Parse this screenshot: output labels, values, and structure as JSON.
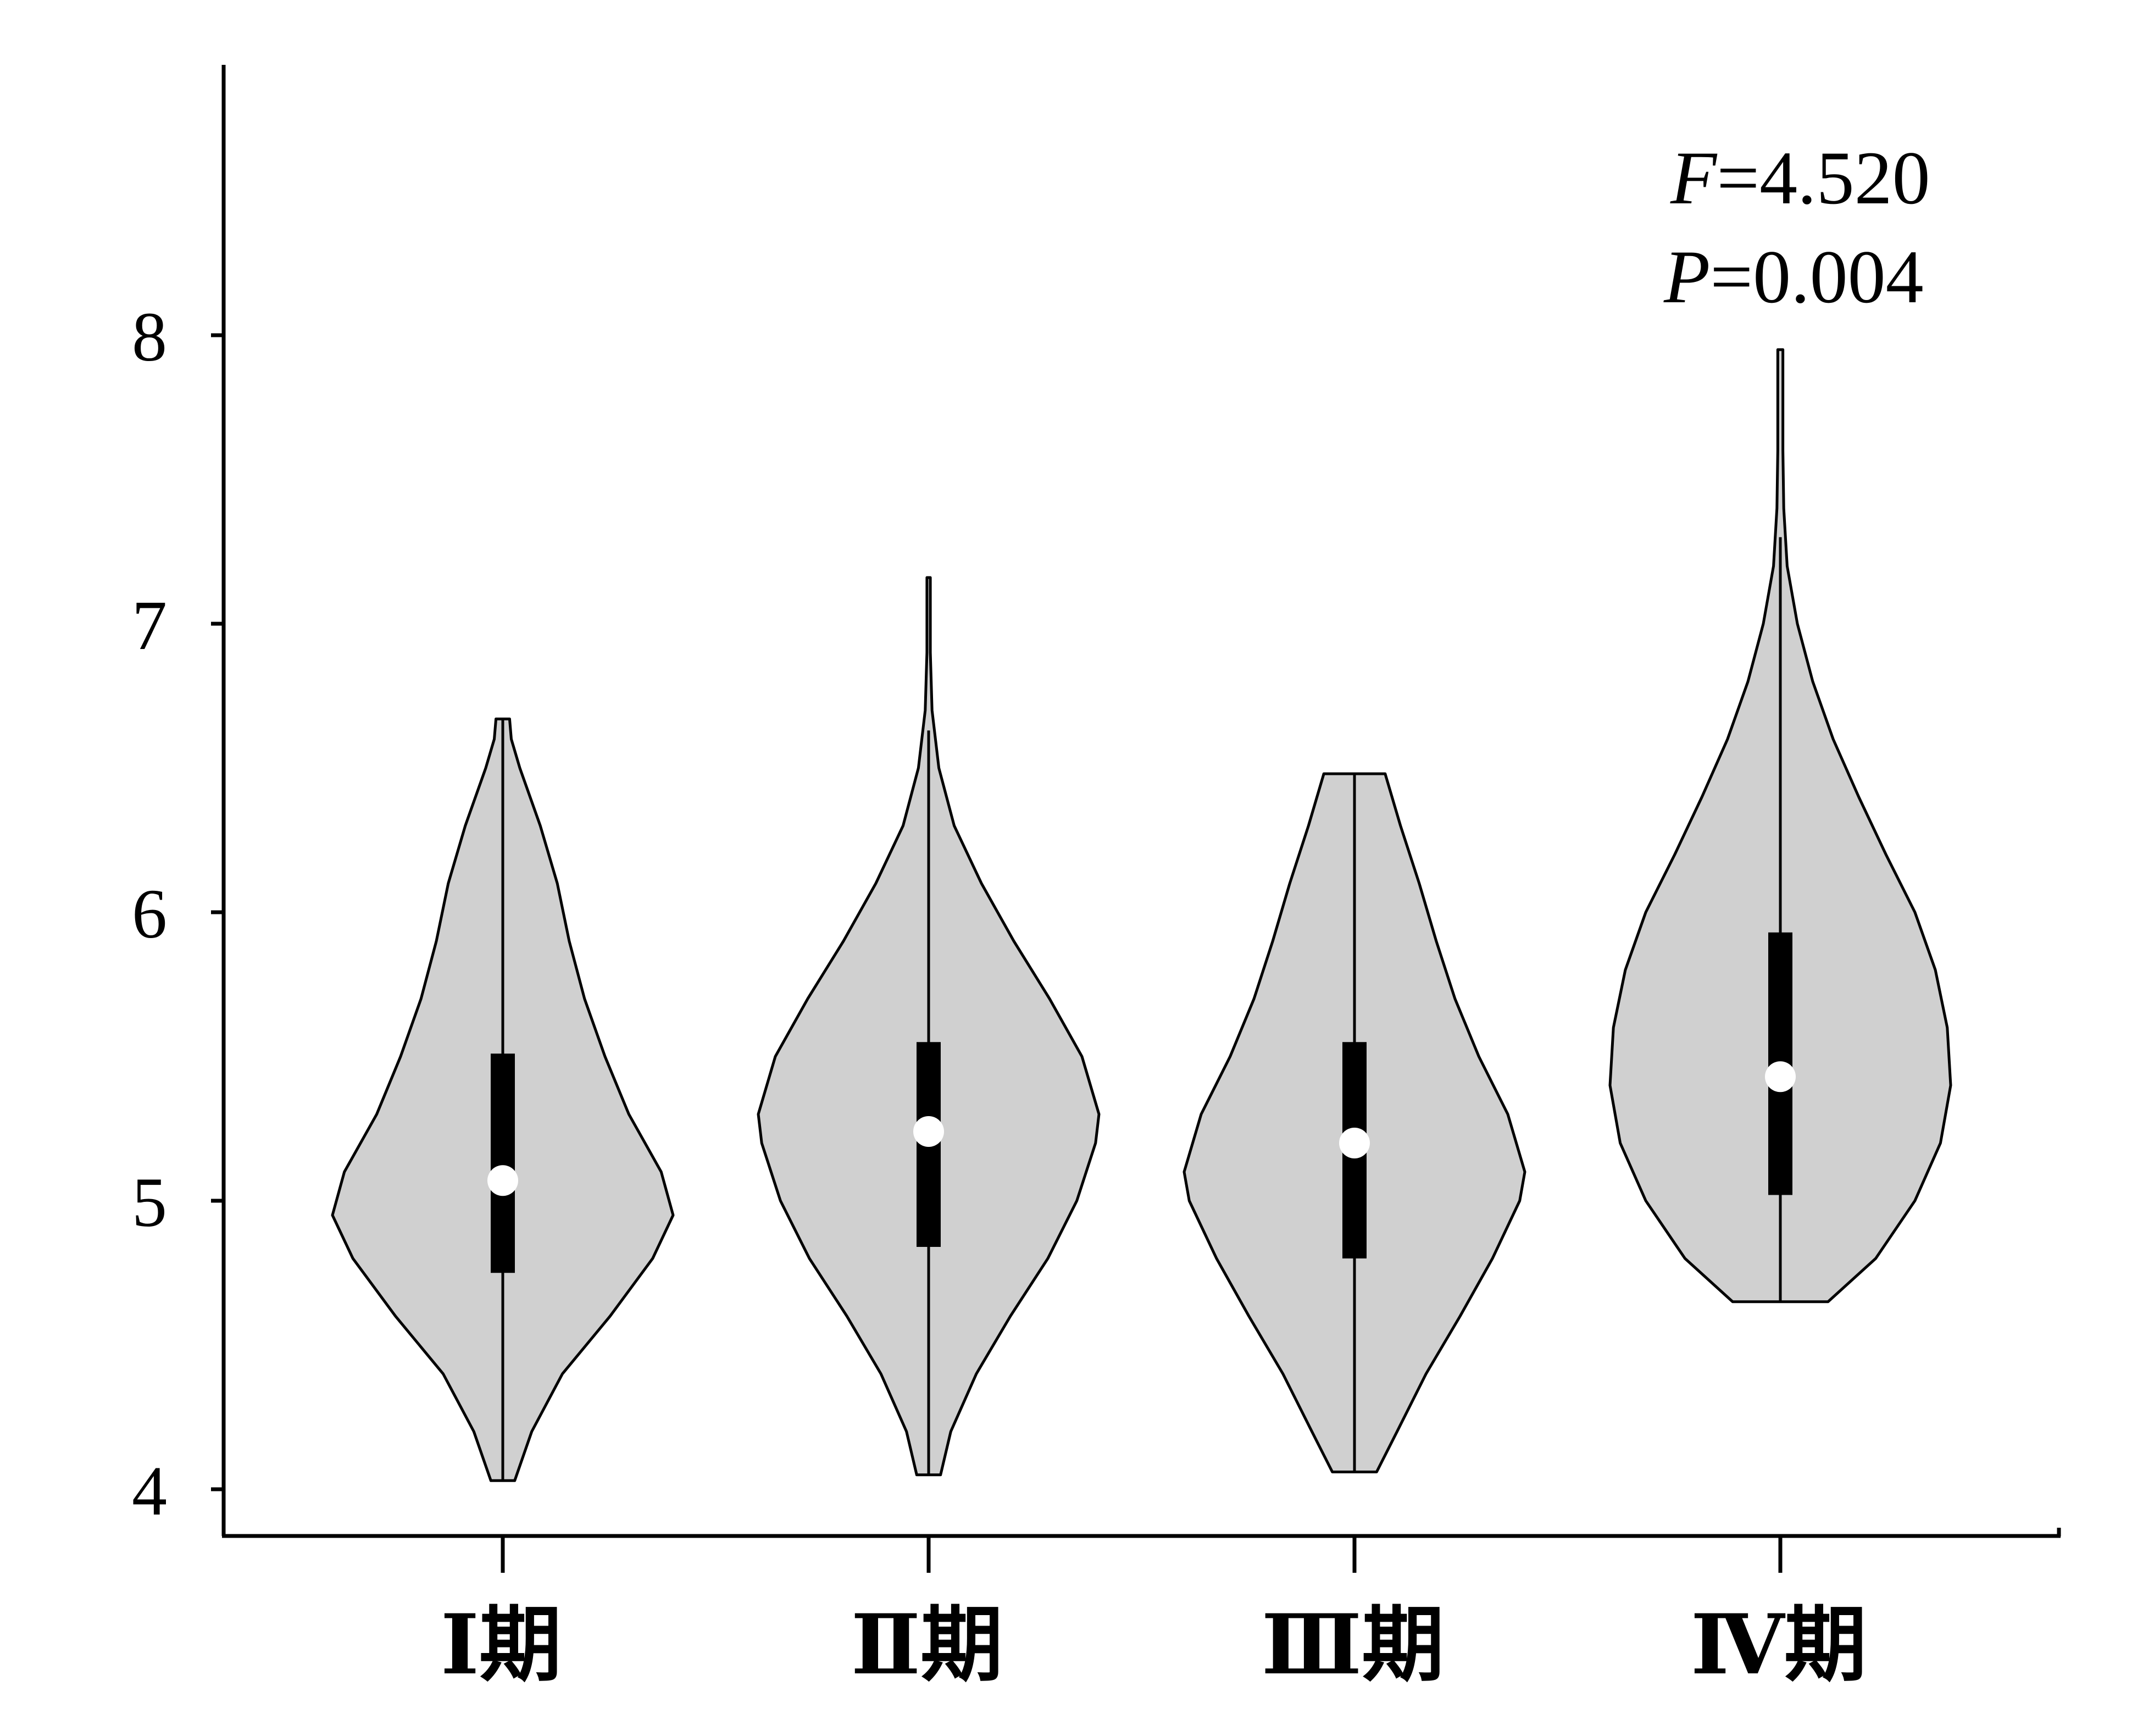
{
  "chart_data": {
    "type": "violin",
    "categories": [
      "Ⅰ期",
      "Ⅱ期",
      "Ⅲ期",
      "Ⅳ期"
    ],
    "ylim": [
      3.85,
      8.95
    ],
    "yticks": [
      4,
      5,
      6,
      7,
      8
    ],
    "ytick_labels": [
      "4",
      "5",
      "6",
      "7",
      "8"
    ],
    "xlabel": "",
    "ylabel": "",
    "title": "",
    "grid": false,
    "fill_color": "#d0d0d0",
    "outline_color": "#000000",
    "annotation": {
      "F_label": "F",
      "F_value": "=4.520",
      "P_label": "P",
      "P_value": "=0.004"
    },
    "violins": [
      {
        "category": "Ⅰ期",
        "min": 4.03,
        "max": 6.67,
        "q1": 4.75,
        "median": 5.07,
        "q3": 5.51,
        "whisker_low": 4.03,
        "whisker_high": 6.67,
        "density": [
          [
            4.03,
            0.07
          ],
          [
            4.2,
            0.17
          ],
          [
            4.4,
            0.35
          ],
          [
            4.6,
            0.63
          ],
          [
            4.8,
            0.88
          ],
          [
            4.95,
            1.0
          ],
          [
            5.1,
            0.93
          ],
          [
            5.3,
            0.74
          ],
          [
            5.5,
            0.6
          ],
          [
            5.7,
            0.48
          ],
          [
            5.9,
            0.39
          ],
          [
            6.1,
            0.32
          ],
          [
            6.3,
            0.22
          ],
          [
            6.5,
            0.1
          ],
          [
            6.6,
            0.05
          ],
          [
            6.67,
            0.04
          ]
        ]
      },
      {
        "category": "Ⅱ期",
        "min": 4.05,
        "max": 7.16,
        "q1": 4.84,
        "median": 5.24,
        "q3": 5.55,
        "whisker_low": 4.05,
        "whisker_high": 6.63,
        "density": [
          [
            4.05,
            0.07
          ],
          [
            4.2,
            0.13
          ],
          [
            4.4,
            0.28
          ],
          [
            4.6,
            0.48
          ],
          [
            4.8,
            0.7
          ],
          [
            5.0,
            0.87
          ],
          [
            5.2,
            0.98
          ],
          [
            5.3,
            1.0
          ],
          [
            5.5,
            0.9
          ],
          [
            5.7,
            0.71
          ],
          [
            5.9,
            0.5
          ],
          [
            6.1,
            0.31
          ],
          [
            6.3,
            0.15
          ],
          [
            6.5,
            0.06
          ],
          [
            6.7,
            0.02
          ],
          [
            6.9,
            0.01
          ],
          [
            7.16,
            0.01
          ]
        ]
      },
      {
        "category": "Ⅲ期",
        "min": 4.06,
        "max": 6.48,
        "q1": 4.8,
        "median": 5.2,
        "q3": 5.55,
        "whisker_low": 4.06,
        "whisker_high": 6.48,
        "density": [
          [
            4.06,
            0.13
          ],
          [
            4.2,
            0.25
          ],
          [
            4.4,
            0.42
          ],
          [
            4.6,
            0.62
          ],
          [
            4.8,
            0.81
          ],
          [
            5.0,
            0.97
          ],
          [
            5.1,
            1.0
          ],
          [
            5.3,
            0.9
          ],
          [
            5.5,
            0.73
          ],
          [
            5.7,
            0.59
          ],
          [
            5.9,
            0.48
          ],
          [
            6.1,
            0.38
          ],
          [
            6.3,
            0.27
          ],
          [
            6.4,
            0.22
          ],
          [
            6.48,
            0.18
          ]
        ]
      },
      {
        "category": "Ⅳ期",
        "min": 4.65,
        "max": 7.95,
        "q1": 5.02,
        "median": 5.43,
        "q3": 5.93,
        "whisker_low": 4.65,
        "whisker_high": 7.3,
        "density": [
          [
            4.65,
            0.28
          ],
          [
            4.8,
            0.56
          ],
          [
            5.0,
            0.79
          ],
          [
            5.2,
            0.94
          ],
          [
            5.4,
            1.0
          ],
          [
            5.6,
            0.98
          ],
          [
            5.8,
            0.91
          ],
          [
            6.0,
            0.79
          ],
          [
            6.2,
            0.62
          ],
          [
            6.4,
            0.46
          ],
          [
            6.6,
            0.31
          ],
          [
            6.8,
            0.19
          ],
          [
            7.0,
            0.1
          ],
          [
            7.2,
            0.04
          ],
          [
            7.4,
            0.02
          ],
          [
            7.6,
            0.015
          ],
          [
            7.95,
            0.015
          ]
        ]
      }
    ]
  }
}
